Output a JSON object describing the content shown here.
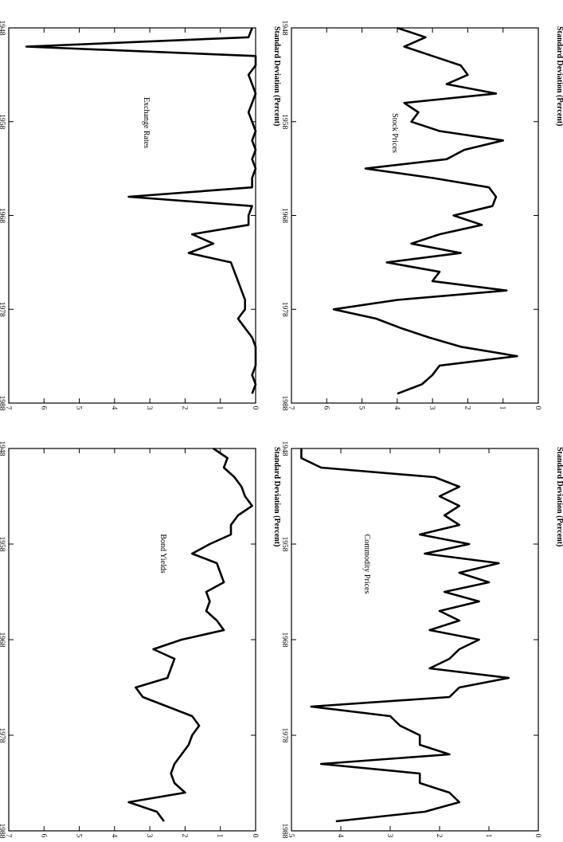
{
  "chart_data": [
    {
      "type": "line",
      "ylabel": "Standard Deviation (Percent)",
      "annotation": "Stock Prices",
      "xlim": [
        1948,
        1988
      ],
      "ylim": [
        0,
        7
      ],
      "xticks": [
        "1948",
        "1958",
        "1968",
        "1978",
        "1988"
      ],
      "yticks": [
        "0",
        "1",
        "2",
        "3",
        "4",
        "5",
        "6",
        "7"
      ],
      "x": [
        1948,
        1949,
        1950,
        1951,
        1952,
        1953,
        1954,
        1955,
        1956,
        1957,
        1958,
        1959,
        1960,
        1961,
        1962,
        1963,
        1964,
        1965,
        1966,
        1967,
        1968,
        1969,
        1970,
        1971,
        1972,
        1973,
        1974,
        1975,
        1976,
        1977,
        1978,
        1979,
        1980,
        1981,
        1982,
        1983,
        1984,
        1985,
        1986,
        1987
      ],
      "y": [
        4.0,
        3.2,
        3.8,
        3.0,
        2.2,
        2.0,
        2.6,
        1.2,
        3.8,
        3.4,
        3.6,
        2.8,
        1.0,
        2.1,
        2.6,
        4.9,
        3.0,
        1.4,
        1.2,
        1.3,
        2.4,
        1.6,
        2.8,
        3.6,
        2.2,
        4.3,
        2.8,
        3.0,
        0.9,
        4.0,
        5.8,
        4.6,
        3.9,
        3.1,
        2.2,
        0.6,
        2.8,
        3.0,
        3.3,
        4.0
      ]
    },
    {
      "type": "line",
      "ylabel": "Standard Deviation (Percent)",
      "annotation": "Commodity Prices",
      "xlim": [
        1948,
        1988
      ],
      "ylim": [
        0,
        5
      ],
      "xticks": [
        "1948",
        "1958",
        "1968",
        "1978",
        "1988"
      ],
      "yticks": [
        "0",
        "1",
        "2",
        "3",
        "4",
        "5"
      ],
      "x": [
        1948,
        1949,
        1950,
        1951,
        1952,
        1953,
        1954,
        1955,
        1956,
        1957,
        1958,
        1959,
        1960,
        1961,
        1962,
        1963,
        1964,
        1965,
        1966,
        1967,
        1968,
        1969,
        1970,
        1971,
        1972,
        1973,
        1974,
        1975,
        1976,
        1977,
        1978,
        1979,
        1980,
        1981,
        1982,
        1983,
        1984,
        1985,
        1986,
        1987
      ],
      "y": [
        4.8,
        4.8,
        4.4,
        2.1,
        1.6,
        2.0,
        1.6,
        1.9,
        1.6,
        2.4,
        1.4,
        2.3,
        0.8,
        1.6,
        1.0,
        1.9,
        1.2,
        2.0,
        1.6,
        2.2,
        1.2,
        1.6,
        1.8,
        2.2,
        0.6,
        1.6,
        1.8,
        4.6,
        3.0,
        2.8,
        2.4,
        2.4,
        1.8,
        4.4,
        2.4,
        2.4,
        1.8,
        1.6,
        2.3,
        4.1
      ]
    },
    {
      "type": "line",
      "ylabel": "Standard Deviation (Percent)",
      "annotation": "Exchange Rates",
      "xlim": [
        1948,
        1988
      ],
      "ylim": [
        0,
        7
      ],
      "xticks": [
        "1948",
        "1958",
        "1968",
        "1978",
        "1988"
      ],
      "yticks": [
        "0",
        "1",
        "2",
        "3",
        "4",
        "5",
        "6",
        "7"
      ],
      "x": [
        1948,
        1949,
        1950,
        1951,
        1952,
        1953,
        1954,
        1955,
        1956,
        1957,
        1958,
        1959,
        1960,
        1961,
        1962,
        1963,
        1964,
        1965,
        1966,
        1967,
        1968,
        1969,
        1970,
        1971,
        1972,
        1973,
        1974,
        1975,
        1976,
        1977,
        1978,
        1979,
        1980,
        1981,
        1982,
        1983,
        1984,
        1985,
        1986,
        1987
      ],
      "y": [
        0.1,
        0.2,
        6.5,
        0.0,
        0.0,
        0.2,
        0.1,
        0.0,
        0.1,
        0.2,
        0.1,
        0.0,
        0.1,
        0.0,
        0.1,
        0.0,
        0.1,
        0.1,
        3.6,
        0.1,
        0.2,
        0.2,
        1.8,
        1.2,
        1.9,
        0.7,
        0.6,
        0.5,
        0.4,
        0.3,
        0.3,
        0.5,
        0.3,
        0.1,
        0.0,
        0.0,
        0.0,
        0.1,
        0.0,
        0.1
      ]
    },
    {
      "type": "line",
      "ylabel": "Standard Deviation (Percent)",
      "annotation": "Bond Yields",
      "xlim": [
        1948,
        1988
      ],
      "ylim": [
        0,
        7
      ],
      "xticks": [
        "1948",
        "1958",
        "1968",
        "1978",
        "1988"
      ],
      "yticks": [
        "0",
        "1",
        "2",
        "3",
        "4",
        "5",
        "6",
        "7"
      ],
      "x": [
        1948,
        1949,
        1950,
        1951,
        1952,
        1953,
        1954,
        1955,
        1956,
        1957,
        1958,
        1959,
        1960,
        1961,
        1962,
        1963,
        1964,
        1965,
        1966,
        1967,
        1968,
        1969,
        1970,
        1971,
        1972,
        1973,
        1974,
        1975,
        1976,
        1977,
        1978,
        1979,
        1980,
        1981,
        1982,
        1983,
        1984,
        1985,
        1986,
        1987
      ],
      "y": [
        1.2,
        0.8,
        0.9,
        0.6,
        0.4,
        0.3,
        0.1,
        0.5,
        0.7,
        0.7,
        1.3,
        1.8,
        1.1,
        1.0,
        0.9,
        1.4,
        1.3,
        1.4,
        1.1,
        0.9,
        2.1,
        2.9,
        2.3,
        2.4,
        2.5,
        3.4,
        3.2,
        2.5,
        1.8,
        1.6,
        1.8,
        1.9,
        2.1,
        2.3,
        2.4,
        2.3,
        2.0,
        3.6,
        2.8,
        2.6
      ]
    }
  ]
}
